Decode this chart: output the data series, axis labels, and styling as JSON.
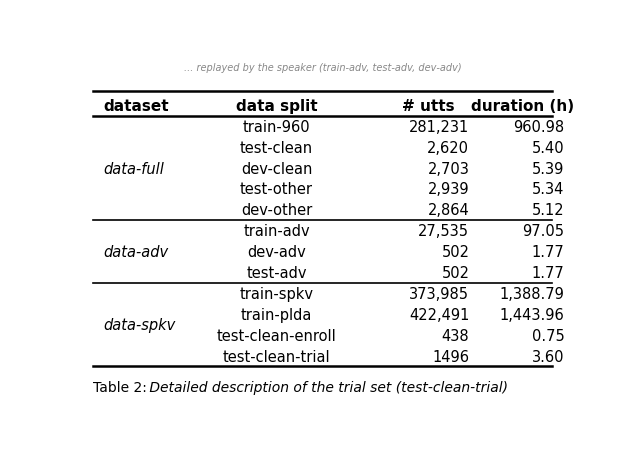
{
  "title_top": "... replayed by the speaker (train-adv, test-adv, dev-adv)",
  "caption_prefix": "Table 2: ",
  "caption_italic": " Detailed description of the trial set (test-clean-trial)",
  "headers": [
    "dataset",
    "data split",
    "# utts",
    "duration (h)"
  ],
  "groups": [
    {
      "label": "data-full",
      "rows": [
        [
          "train-960",
          "281,231",
          "960.98"
        ],
        [
          "test-clean",
          "2,620",
          "5.40"
        ],
        [
          "dev-clean",
          "2,703",
          "5.39"
        ],
        [
          "test-other",
          "2,939",
          "5.34"
        ],
        [
          "dev-other",
          "2,864",
          "5.12"
        ]
      ]
    },
    {
      "label": "data-adv",
      "rows": [
        [
          "train-adv",
          "27,535",
          "97.05"
        ],
        [
          "dev-adv",
          "502",
          "1.77"
        ],
        [
          "test-adv",
          "502",
          "1.77"
        ]
      ]
    },
    {
      "label": "data-spkv",
      "rows": [
        [
          "train-spkv",
          "373,985",
          "1,388.79"
        ],
        [
          "train-plda",
          "422,491",
          "1,443.96"
        ],
        [
          "test-clean-enroll",
          "438",
          "0.75"
        ],
        [
          "test-clean-trial",
          "1496",
          "3.60"
        ]
      ]
    }
  ],
  "background_color": "#ffffff",
  "text_color": "#000000",
  "header_fontsize": 11,
  "body_fontsize": 10.5,
  "caption_fontsize": 10
}
